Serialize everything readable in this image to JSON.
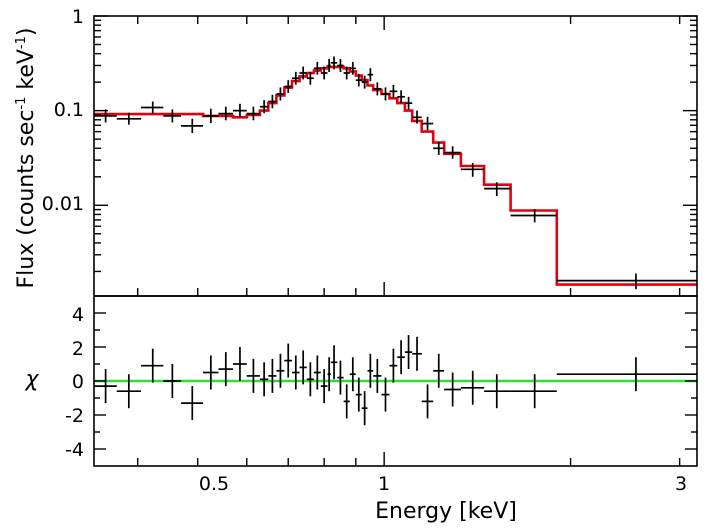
{
  "chart_data": [
    {
      "panel": "spectrum",
      "type": "step-line with error bars",
      "x_scale": "log",
      "y_scale": "log",
      "xlim": [
        0.34,
        3.2
      ],
      "ylim": [
        0.0011,
        1.0
      ],
      "ylabel_main": "Flux (counts sec",
      "ylabel_sup1": "-1",
      "ylabel_mid": " keV",
      "ylabel_sup2": "-1",
      "ylabel_end": ")",
      "y_ticks": [
        {
          "value": 1,
          "label": "1"
        },
        {
          "value": 0.1,
          "label": "0.1"
        },
        {
          "value": 0.01,
          "label": "0.01"
        }
      ],
      "colors": {
        "data": "#000000",
        "model": "#e3000f"
      },
      "data_points": [
        {
          "x": 0.355,
          "y": 0.088,
          "xlo": 0.34,
          "xhi": 0.37,
          "ylo": 0.075,
          "yhi": 0.103
        },
        {
          "x": 0.387,
          "y": 0.082,
          "xlo": 0.37,
          "xhi": 0.405,
          "ylo": 0.071,
          "yhi": 0.095
        },
        {
          "x": 0.423,
          "y": 0.108,
          "xlo": 0.405,
          "xhi": 0.44,
          "ylo": 0.093,
          "yhi": 0.125
        },
        {
          "x": 0.455,
          "y": 0.088,
          "xlo": 0.44,
          "xhi": 0.47,
          "ylo": 0.075,
          "yhi": 0.103
        },
        {
          "x": 0.49,
          "y": 0.069,
          "xlo": 0.47,
          "xhi": 0.51,
          "ylo": 0.058,
          "yhi": 0.082
        },
        {
          "x": 0.525,
          "y": 0.088,
          "xlo": 0.51,
          "xhi": 0.54,
          "ylo": 0.074,
          "yhi": 0.105
        },
        {
          "x": 0.555,
          "y": 0.093,
          "xlo": 0.54,
          "xhi": 0.57,
          "ylo": 0.079,
          "yhi": 0.11
        },
        {
          "x": 0.585,
          "y": 0.1,
          "xlo": 0.57,
          "xhi": 0.6,
          "ylo": 0.085,
          "yhi": 0.118
        },
        {
          "x": 0.615,
          "y": 0.093,
          "xlo": 0.6,
          "xhi": 0.63,
          "ylo": 0.079,
          "yhi": 0.11
        },
        {
          "x": 0.64,
          "y": 0.11,
          "xlo": 0.63,
          "xhi": 0.65,
          "ylo": 0.094,
          "yhi": 0.129
        },
        {
          "x": 0.66,
          "y": 0.125,
          "xlo": 0.65,
          "xhi": 0.67,
          "ylo": 0.106,
          "yhi": 0.147
        },
        {
          "x": 0.68,
          "y": 0.15,
          "xlo": 0.67,
          "xhi": 0.69,
          "ylo": 0.128,
          "yhi": 0.176
        },
        {
          "x": 0.7,
          "y": 0.18,
          "xlo": 0.69,
          "xhi": 0.71,
          "ylo": 0.154,
          "yhi": 0.21
        },
        {
          "x": 0.72,
          "y": 0.22,
          "xlo": 0.71,
          "xhi": 0.73,
          "ylo": 0.188,
          "yhi": 0.257
        },
        {
          "x": 0.74,
          "y": 0.25,
          "xlo": 0.73,
          "xhi": 0.75,
          "ylo": 0.214,
          "yhi": 0.292
        },
        {
          "x": 0.76,
          "y": 0.22,
          "xlo": 0.75,
          "xhi": 0.77,
          "ylo": 0.188,
          "yhi": 0.257
        },
        {
          "x": 0.78,
          "y": 0.28,
          "xlo": 0.77,
          "xhi": 0.79,
          "ylo": 0.24,
          "yhi": 0.327
        },
        {
          "x": 0.8,
          "y": 0.25,
          "xlo": 0.79,
          "xhi": 0.81,
          "ylo": 0.214,
          "yhi": 0.292
        },
        {
          "x": 0.815,
          "y": 0.3,
          "xlo": 0.81,
          "xhi": 0.82,
          "ylo": 0.256,
          "yhi": 0.351
        },
        {
          "x": 0.83,
          "y": 0.32,
          "xlo": 0.82,
          "xhi": 0.84,
          "ylo": 0.273,
          "yhi": 0.374
        },
        {
          "x": 0.85,
          "y": 0.3,
          "xlo": 0.84,
          "xhi": 0.86,
          "ylo": 0.256,
          "yhi": 0.351
        },
        {
          "x": 0.87,
          "y": 0.25,
          "xlo": 0.86,
          "xhi": 0.88,
          "ylo": 0.214,
          "yhi": 0.292
        },
        {
          "x": 0.89,
          "y": 0.28,
          "xlo": 0.88,
          "xhi": 0.9,
          "ylo": 0.24,
          "yhi": 0.327
        },
        {
          "x": 0.91,
          "y": 0.21,
          "xlo": 0.9,
          "xhi": 0.92,
          "ylo": 0.18,
          "yhi": 0.245
        },
        {
          "x": 0.93,
          "y": 0.2,
          "xlo": 0.92,
          "xhi": 0.94,
          "ylo": 0.171,
          "yhi": 0.234
        },
        {
          "x": 0.95,
          "y": 0.24,
          "xlo": 0.94,
          "xhi": 0.96,
          "ylo": 0.205,
          "yhi": 0.281
        },
        {
          "x": 0.975,
          "y": 0.17,
          "xlo": 0.96,
          "xhi": 0.99,
          "ylo": 0.145,
          "yhi": 0.199
        },
        {
          "x": 1.005,
          "y": 0.15,
          "xlo": 0.99,
          "xhi": 1.02,
          "ylo": 0.128,
          "yhi": 0.176
        },
        {
          "x": 1.035,
          "y": 0.16,
          "xlo": 1.02,
          "xhi": 1.05,
          "ylo": 0.137,
          "yhi": 0.187
        },
        {
          "x": 1.065,
          "y": 0.14,
          "xlo": 1.05,
          "xhi": 1.08,
          "ylo": 0.12,
          "yhi": 0.164
        },
        {
          "x": 1.095,
          "y": 0.12,
          "xlo": 1.08,
          "xhi": 1.11,
          "ylo": 0.103,
          "yhi": 0.14
        },
        {
          "x": 1.13,
          "y": 0.085,
          "xlo": 1.11,
          "xhi": 1.15,
          "ylo": 0.073,
          "yhi": 0.1
        },
        {
          "x": 1.175,
          "y": 0.073,
          "xlo": 1.15,
          "xhi": 1.2,
          "ylo": 0.062,
          "yhi": 0.086
        },
        {
          "x": 1.225,
          "y": 0.04,
          "xlo": 1.2,
          "xhi": 1.25,
          "ylo": 0.034,
          "yhi": 0.047
        },
        {
          "x": 1.29,
          "y": 0.036,
          "xlo": 1.25,
          "xhi": 1.33,
          "ylo": 0.031,
          "yhi": 0.042
        },
        {
          "x": 1.39,
          "y": 0.024,
          "xlo": 1.33,
          "xhi": 1.45,
          "ylo": 0.02,
          "yhi": 0.028
        },
        {
          "x": 1.52,
          "y": 0.015,
          "xlo": 1.45,
          "xhi": 1.6,
          "ylo": 0.0125,
          "yhi": 0.0175
        },
        {
          "x": 1.75,
          "y": 0.0078,
          "xlo": 1.6,
          "xhi": 1.9,
          "ylo": 0.0066,
          "yhi": 0.0091
        },
        {
          "x": 2.55,
          "y": 0.0016,
          "xlo": 1.9,
          "xhi": 3.2,
          "ylo": 0.0013,
          "yhi": 0.0019
        }
      ],
      "model_steps": [
        {
          "x0": 0.34,
          "x1": 0.51,
          "y": 0.092
        },
        {
          "x0": 0.51,
          "x1": 0.57,
          "y": 0.088
        },
        {
          "x0": 0.57,
          "x1": 0.6,
          "y": 0.085
        },
        {
          "x0": 0.6,
          "x1": 0.63,
          "y": 0.09
        },
        {
          "x0": 0.63,
          "x1": 0.65,
          "y": 0.1
        },
        {
          "x0": 0.65,
          "x1": 0.67,
          "y": 0.12
        },
        {
          "x0": 0.67,
          "x1": 0.69,
          "y": 0.145
        },
        {
          "x0": 0.69,
          "x1": 0.71,
          "y": 0.175
        },
        {
          "x0": 0.71,
          "x1": 0.73,
          "y": 0.205
        },
        {
          "x0": 0.73,
          "x1": 0.75,
          "y": 0.23
        },
        {
          "x0": 0.75,
          "x1": 0.77,
          "y": 0.25
        },
        {
          "x0": 0.77,
          "x1": 0.79,
          "y": 0.265
        },
        {
          "x0": 0.79,
          "x1": 0.81,
          "y": 0.28
        },
        {
          "x0": 0.81,
          "x1": 0.84,
          "y": 0.29
        },
        {
          "x0": 0.84,
          "x1": 0.86,
          "y": 0.29
        },
        {
          "x0": 0.86,
          "x1": 0.88,
          "y": 0.28
        },
        {
          "x0": 0.88,
          "x1": 0.9,
          "y": 0.26
        },
        {
          "x0": 0.9,
          "x1": 0.92,
          "y": 0.235
        },
        {
          "x0": 0.92,
          "x1": 0.94,
          "y": 0.21
        },
        {
          "x0": 0.94,
          "x1": 0.96,
          "y": 0.185
        },
        {
          "x0": 0.96,
          "x1": 0.99,
          "y": 0.165
        },
        {
          "x0": 0.99,
          "x1": 1.02,
          "y": 0.15
        },
        {
          "x0": 1.02,
          "x1": 1.05,
          "y": 0.135
        },
        {
          "x0": 1.05,
          "x1": 1.08,
          "y": 0.12
        },
        {
          "x0": 1.08,
          "x1": 1.11,
          "y": 0.1
        },
        {
          "x0": 1.11,
          "x1": 1.15,
          "y": 0.078
        },
        {
          "x0": 1.15,
          "x1": 1.2,
          "y": 0.06
        },
        {
          "x0": 1.2,
          "x1": 1.25,
          "y": 0.046
        },
        {
          "x0": 1.25,
          "x1": 1.33,
          "y": 0.035
        },
        {
          "x0": 1.33,
          "x1": 1.45,
          "y": 0.026
        },
        {
          "x0": 1.45,
          "x1": 1.6,
          "y": 0.0165
        },
        {
          "x0": 1.6,
          "x1": 1.9,
          "y": 0.0088
        },
        {
          "x0": 1.9,
          "x1": 3.2,
          "y": 0.00145
        }
      ]
    },
    {
      "panel": "residuals",
      "type": "error-bar scatter",
      "x_scale": "log",
      "xlim": [
        0.34,
        3.2
      ],
      "ylim": [
        -5,
        5
      ],
      "ylabel": "χ",
      "xlabel": "Energy [keV]",
      "x_ticks": [
        {
          "value": 0.5,
          "label": "0.5"
        },
        {
          "value": 1,
          "label": "1"
        },
        {
          "value": 3,
          "label": "3"
        }
      ],
      "y_ticks": [
        {
          "value": 4,
          "label": "4"
        },
        {
          "value": 2,
          "label": "2"
        },
        {
          "value": 0,
          "label": "0"
        },
        {
          "value": -2,
          "label": "-2"
        },
        {
          "value": -4,
          "label": "-4"
        }
      ],
      "zero_line_color": "#33dd33",
      "points": [
        {
          "x": 0.355,
          "y": -0.3,
          "xlo": 0.34,
          "xhi": 0.37
        },
        {
          "x": 0.387,
          "y": -0.6,
          "xlo": 0.37,
          "xhi": 0.405
        },
        {
          "x": 0.423,
          "y": 0.9,
          "xlo": 0.405,
          "xhi": 0.44
        },
        {
          "x": 0.455,
          "y": 0.0,
          "xlo": 0.44,
          "xhi": 0.47
        },
        {
          "x": 0.49,
          "y": -1.3,
          "xlo": 0.47,
          "xhi": 0.51
        },
        {
          "x": 0.525,
          "y": 0.5,
          "xlo": 0.51,
          "xhi": 0.54
        },
        {
          "x": 0.555,
          "y": 0.7,
          "xlo": 0.54,
          "xhi": 0.57
        },
        {
          "x": 0.585,
          "y": 1.0,
          "xlo": 0.57,
          "xhi": 0.6
        },
        {
          "x": 0.615,
          "y": 0.3,
          "xlo": 0.6,
          "xhi": 0.63
        },
        {
          "x": 0.64,
          "y": 0.1,
          "xlo": 0.63,
          "xhi": 0.65
        },
        {
          "x": 0.66,
          "y": 0.3,
          "xlo": 0.65,
          "xhi": 0.67
        },
        {
          "x": 0.68,
          "y": 0.6,
          "xlo": 0.67,
          "xhi": 0.69
        },
        {
          "x": 0.7,
          "y": 1.2,
          "xlo": 0.69,
          "xhi": 0.71
        },
        {
          "x": 0.72,
          "y": 0.5,
          "xlo": 0.71,
          "xhi": 0.73
        },
        {
          "x": 0.74,
          "y": 0.8,
          "xlo": 0.73,
          "xhi": 0.75
        },
        {
          "x": 0.76,
          "y": 0.1,
          "xlo": 0.75,
          "xhi": 0.77
        },
        {
          "x": 0.78,
          "y": 0.5,
          "xlo": 0.77,
          "xhi": 0.79
        },
        {
          "x": 0.8,
          "y": -0.3,
          "xlo": 0.79,
          "xhi": 0.81
        },
        {
          "x": 0.815,
          "y": 0.4,
          "xlo": 0.81,
          "xhi": 0.82
        },
        {
          "x": 0.83,
          "y": 1.1,
          "xlo": 0.82,
          "xhi": 0.84
        },
        {
          "x": 0.85,
          "y": 0.2,
          "xlo": 0.84,
          "xhi": 0.86
        },
        {
          "x": 0.87,
          "y": -1.2,
          "xlo": 0.86,
          "xhi": 0.88
        },
        {
          "x": 0.89,
          "y": 0.4,
          "xlo": 0.88,
          "xhi": 0.9
        },
        {
          "x": 0.91,
          "y": -0.8,
          "xlo": 0.9,
          "xhi": 0.92
        },
        {
          "x": 0.93,
          "y": -1.6,
          "xlo": 0.92,
          "xhi": 0.94
        },
        {
          "x": 0.95,
          "y": 0.6,
          "xlo": 0.94,
          "xhi": 0.96
        },
        {
          "x": 0.975,
          "y": 0.3,
          "xlo": 0.96,
          "xhi": 0.99
        },
        {
          "x": 1.005,
          "y": -0.8,
          "xlo": 0.99,
          "xhi": 1.02
        },
        {
          "x": 1.035,
          "y": 0.9,
          "xlo": 1.02,
          "xhi": 1.05
        },
        {
          "x": 1.065,
          "y": 1.4,
          "xlo": 1.05,
          "xhi": 1.08
        },
        {
          "x": 1.095,
          "y": 1.7,
          "xlo": 1.08,
          "xhi": 1.11
        },
        {
          "x": 1.13,
          "y": 1.6,
          "xlo": 1.11,
          "xhi": 1.15
        },
        {
          "x": 1.175,
          "y": -1.2,
          "xlo": 1.15,
          "xhi": 1.2
        },
        {
          "x": 1.225,
          "y": 0.6,
          "xlo": 1.2,
          "xhi": 1.25
        },
        {
          "x": 1.29,
          "y": -0.5,
          "xlo": 1.25,
          "xhi": 1.33
        },
        {
          "x": 1.39,
          "y": -0.4,
          "xlo": 1.33,
          "xhi": 1.45
        },
        {
          "x": 1.52,
          "y": -0.6,
          "xlo": 1.45,
          "xhi": 1.6
        },
        {
          "x": 1.75,
          "y": -0.6,
          "xlo": 1.6,
          "xhi": 1.9
        },
        {
          "x": 2.55,
          "y": 0.4,
          "xlo": 1.9,
          "xhi": 3.2
        }
      ]
    }
  ]
}
